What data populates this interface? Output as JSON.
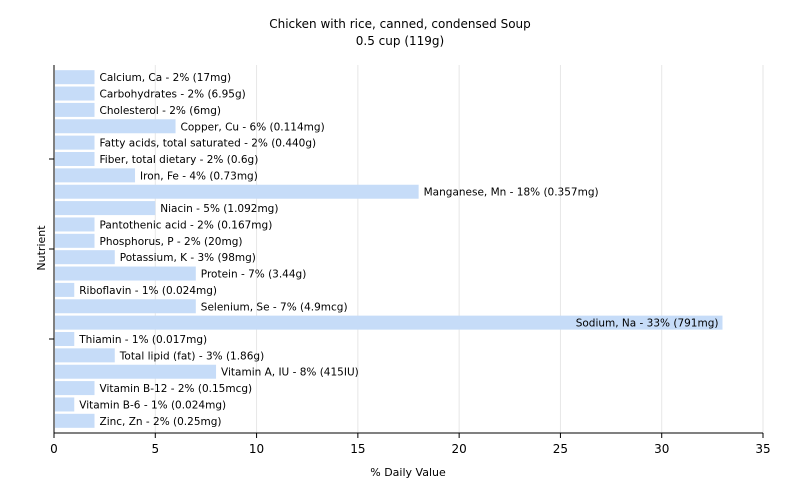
{
  "chart_data": {
    "type": "bar",
    "orientation": "horizontal",
    "title": "Chicken with rice, canned, condensed Soup",
    "subtitle": "0.5 cup (119g)",
    "xlabel": "% Daily Value",
    "ylabel": "Nutrient",
    "xlim": [
      0,
      35
    ],
    "xticks": [
      0,
      5,
      10,
      15,
      20,
      25,
      30,
      35
    ],
    "grid": "vertical",
    "bar_color": "#c6dcf8",
    "categories": [
      "Calcium, Ca",
      "Carbohydrates",
      "Cholesterol",
      "Copper, Cu",
      "Fatty acids, total saturated",
      "Fiber, total dietary",
      "Iron, Fe",
      "Manganese, Mn",
      "Niacin",
      "Pantothenic acid",
      "Phosphorus, P",
      "Potassium, K",
      "Protein",
      "Riboflavin",
      "Selenium, Se",
      "Sodium, Na",
      "Thiamin",
      "Total lipid (fat)",
      "Vitamin A, IU",
      "Vitamin B-12",
      "Vitamin B-6",
      "Zinc, Zn"
    ],
    "values": [
      2,
      2,
      2,
      6,
      2,
      2,
      4,
      18,
      5,
      2,
      2,
      3,
      7,
      1,
      7,
      33,
      1,
      3,
      8,
      2,
      1,
      2
    ],
    "labels": [
      "Calcium, Ca - 2% (17mg)",
      "Carbohydrates - 2% (6.95g)",
      "Cholesterol - 2% (6mg)",
      "Copper, Cu - 6% (0.114mg)",
      "Fatty acids, total saturated - 2% (0.440g)",
      "Fiber, total dietary - 2% (0.6g)",
      "Iron, Fe - 4% (0.73mg)",
      "Manganese, Mn - 18% (0.357mg)",
      "Niacin - 5% (1.092mg)",
      "Pantothenic acid - 2% (0.167mg)",
      "Phosphorus, P - 2% (20mg)",
      "Potassium, K - 3% (98mg)",
      "Protein - 7% (3.44g)",
      "Riboflavin - 1% (0.024mg)",
      "Selenium, Se - 7% (4.9mcg)",
      "Sodium, Na - 33% (791mg)",
      "Thiamin - 1% (0.017mg)",
      "Total lipid (fat) - 3% (1.86g)",
      "Vitamin A, IU - 8% (415IU)",
      "Vitamin B-12 - 2% (0.15mcg)",
      "Vitamin B-6 - 1% (0.024mg)",
      "Zinc, Zn - 2% (0.25mg)"
    ]
  }
}
